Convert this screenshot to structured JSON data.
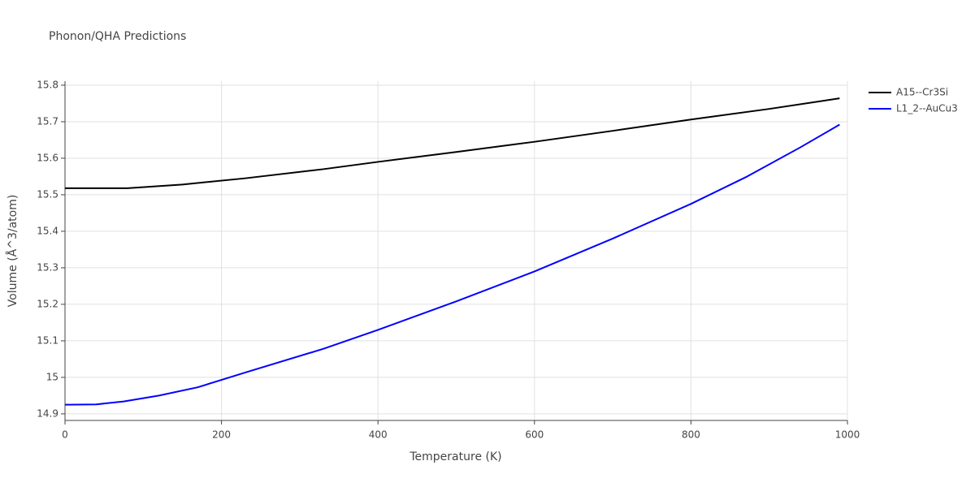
{
  "chart_data": {
    "type": "line",
    "title": "Phonon/QHA Predictions",
    "x_label": "Temperature (K)",
    "y_label": "Volume (Å^3/atom)",
    "xlim": [
      0,
      1000
    ],
    "ylim": [
      14.882,
      15.811
    ],
    "xticks": [
      0,
      200,
      400,
      600,
      800,
      1000
    ],
    "yticks": [
      14.9,
      15,
      15.1,
      15.2,
      15.3,
      15.4,
      15.5,
      15.6,
      15.7,
      15.8
    ],
    "grid": true,
    "legend": "top-right",
    "series": [
      {
        "name": "A15--Cr3Si",
        "color": "#000000",
        "x": [
          0,
          80,
          150,
          230,
          330,
          400,
          500,
          600,
          700,
          800,
          900,
          990
        ],
        "values": [
          15.518,
          15.518,
          15.528,
          15.545,
          15.57,
          15.59,
          15.617,
          15.645,
          15.675,
          15.706,
          15.735,
          15.764
        ]
      },
      {
        "name": "L1_2--AuCu3",
        "color": "#0000ff",
        "x": [
          0,
          40,
          75,
          120,
          170,
          230,
          330,
          400,
          500,
          600,
          700,
          800,
          870,
          940,
          990
        ],
        "values": [
          14.925,
          14.926,
          14.934,
          14.95,
          14.973,
          15.013,
          15.078,
          15.13,
          15.208,
          15.29,
          15.38,
          15.475,
          15.548,
          15.63,
          15.692
        ]
      }
    ]
  }
}
